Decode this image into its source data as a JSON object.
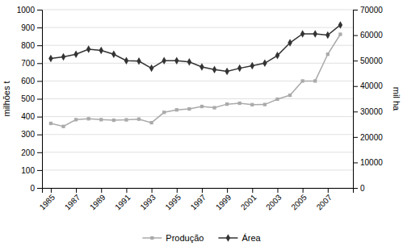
{
  "chart_data": {
    "type": "line",
    "x": [
      1985,
      1986,
      1987,
      1988,
      1989,
      1990,
      1991,
      1992,
      1993,
      1994,
      1995,
      1996,
      1997,
      1998,
      1999,
      2000,
      2001,
      2002,
      2003,
      2004,
      2005,
      2006,
      2007,
      2008
    ],
    "xlim": [
      1984.3,
      2009.0
    ],
    "xticks": [
      1985,
      1987,
      1989,
      1991,
      1993,
      1995,
      1997,
      1999,
      2001,
      2003,
      2005,
      2007
    ],
    "ylabel": "milhões t",
    "y2label": "mil ha",
    "ylim": [
      0,
      1000
    ],
    "yticks": [
      0,
      100,
      200,
      300,
      400,
      500,
      600,
      700,
      800,
      900,
      1000
    ],
    "y2lim": [
      0,
      70000
    ],
    "y2ticks": [
      0,
      10000,
      20000,
      30000,
      40000,
      50000,
      60000,
      70000
    ],
    "grid": true,
    "legend": "bottom",
    "series": [
      {
        "name": "Produção",
        "color": "#aaaaaa",
        "marker": "square",
        "values": [
          362,
          345,
          383,
          388,
          383,
          380,
          382,
          386,
          366,
          424,
          438,
          443,
          457,
          450,
          470,
          475,
          467,
          468,
          498,
          520,
          600,
          600,
          750,
          862
        ]
      },
      {
        "name": "Área",
        "color": "#333333",
        "marker": "diamond",
        "axis": "y2",
        "values": [
          50800,
          51500,
          52500,
          54500,
          54000,
          52500,
          50000,
          49800,
          47000,
          50000,
          50000,
          49500,
          47500,
          46500,
          45800,
          47000,
          48000,
          49000,
          52000,
          57000,
          60500,
          60500,
          60000,
          64000
        ]
      }
    ]
  }
}
